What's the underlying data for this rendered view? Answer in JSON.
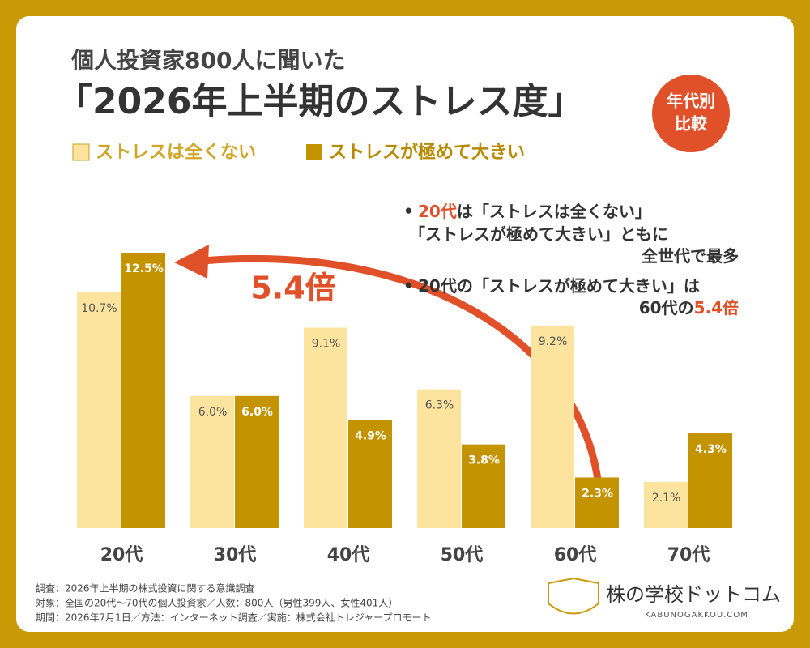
{
  "header": {
    "title": "個人投資家800人に聞いた",
    "subtitle": "「2026年上半期のストレス度」",
    "badge": [
      "年代別",
      "比較"
    ]
  },
  "chart_data": {
    "type": "bar",
    "categories": [
      "20代",
      "30代",
      "40代",
      "50代",
      "60代",
      "70代"
    ],
    "series": [
      {
        "name": "ストレスは全くない",
        "color": "#FCE49E",
        "values": [
          10.7,
          6.0,
          9.1,
          6.3,
          9.2,
          2.1
        ],
        "value_labels": [
          "10.7%",
          "6.0%",
          "9.1%",
          "6.3%",
          "9.2%",
          "2.1%"
        ]
      },
      {
        "name": "ストレスが極めて大きい",
        "color": "#C39400",
        "values": [
          12.5,
          6.0,
          4.9,
          3.8,
          2.3,
          4.3
        ],
        "value_labels": [
          "12.5%",
          "6.0%",
          "4.9%",
          "3.8%",
          "2.3%",
          "4.3%"
        ]
      }
    ],
    "ylim": [
      0,
      12.5
    ],
    "annotation": "5.4倍"
  },
  "notes": [
    {
      "lines": [
        [
          "20代",
          "は「ストレスは全くない」"
        ],
        [
          "「ストレスが極めて大きい」ともに"
        ],
        [
          "全世代で最多"
        ]
      ]
    },
    {
      "lines": [
        [
          "20代の「ストレスが極めて大きい」は"
        ],
        [
          "60代の",
          "5.4倍"
        ]
      ]
    }
  ],
  "footer": [
    "調査：2026年上半期の株式投資に関する意識調査",
    "対象：全国の20代〜70代の個人投資家／人数：800人（男性399人、女性401人）",
    "期間：2026年7月1日／方法：インターネット調査／実施：株式会社トレジャープロモート"
  ],
  "logo": {
    "name": "株の学校ドットコム",
    "url": "KABUNOGAKKOU.COM"
  }
}
